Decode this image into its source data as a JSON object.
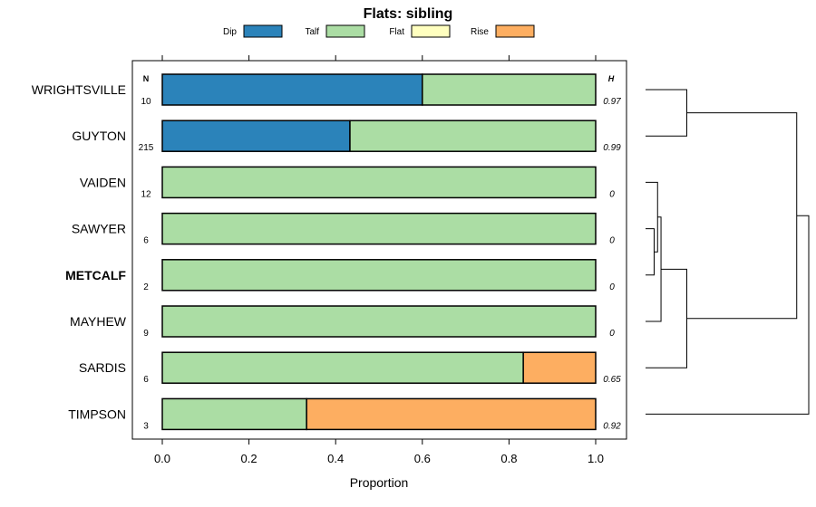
{
  "chart_data": {
    "type": "bar",
    "orientation": "horizontal",
    "stacked": true,
    "title": "Flats: sibling",
    "xlabel": "Proportion",
    "xlim": [
      0,
      1
    ],
    "xticks": [
      "0.0",
      "0.2",
      "0.4",
      "0.6",
      "0.8",
      "1.0"
    ],
    "xtick_values": [
      0,
      0.2,
      0.4,
      0.6,
      0.8,
      1.0
    ],
    "n_header": "N",
    "h_header": "H",
    "legend_placement": "top",
    "legend": [
      {
        "name": "Dip",
        "color": "#2b83ba"
      },
      {
        "name": "Talf",
        "color": "#abdda4"
      },
      {
        "name": "Flat",
        "color": "#ffffbf"
      },
      {
        "name": "Rise",
        "color": "#fdae61"
      }
    ],
    "categories": [
      "WRIGHTSVILLE",
      "GUYTON",
      "VAIDEN",
      "SAWYER",
      "METCALF",
      "MAYHEW",
      "SARDIS",
      "TIMPSON"
    ],
    "highlighted_category": "METCALF",
    "n": [
      "10",
      "215",
      "12",
      "6",
      "2",
      "9",
      "6",
      "3"
    ],
    "h": [
      "0.97",
      "0.99",
      "0",
      "0",
      "0",
      "0",
      "0.65",
      "0.92"
    ],
    "series": [
      {
        "name": "Dip",
        "values": [
          0.6,
          0.433,
          0,
          0,
          0,
          0,
          0,
          0
        ]
      },
      {
        "name": "Talf",
        "values": [
          0.4,
          0.567,
          1,
          1,
          1,
          1,
          0.833,
          0.333
        ]
      },
      {
        "name": "Flat",
        "values": [
          0,
          0,
          0,
          0,
          0,
          0,
          0,
          0
        ]
      },
      {
        "name": "Rise",
        "values": [
          0,
          0,
          0,
          0,
          0,
          0,
          0.167,
          0.667
        ]
      }
    ],
    "dendrogram": {
      "leaf_order": [
        "WRIGHTSVILLE",
        "GUYTON",
        "VAIDEN",
        "SAWYER",
        "METCALF",
        "MAYHEW",
        "SARDIS",
        "TIMPSON"
      ],
      "merges": [
        {
          "a": "SAWYER",
          "b": "METCALF",
          "height": 0.05
        },
        {
          "a": "VAIDEN",
          "b": "m1",
          "height": 0.07
        },
        {
          "a": "m2",
          "b": "MAYHEW",
          "height": 0.09
        },
        {
          "a": "m3",
          "b": "SARDIS",
          "height": 0.24
        },
        {
          "a": "WRIGHTSVILLE",
          "b": "GUYTON",
          "height": 0.24
        },
        {
          "a": "m5",
          "b": "m4",
          "height": 0.88
        },
        {
          "a": "m6",
          "b": "TIMPSON",
          "height": 0.95
        }
      ]
    }
  }
}
